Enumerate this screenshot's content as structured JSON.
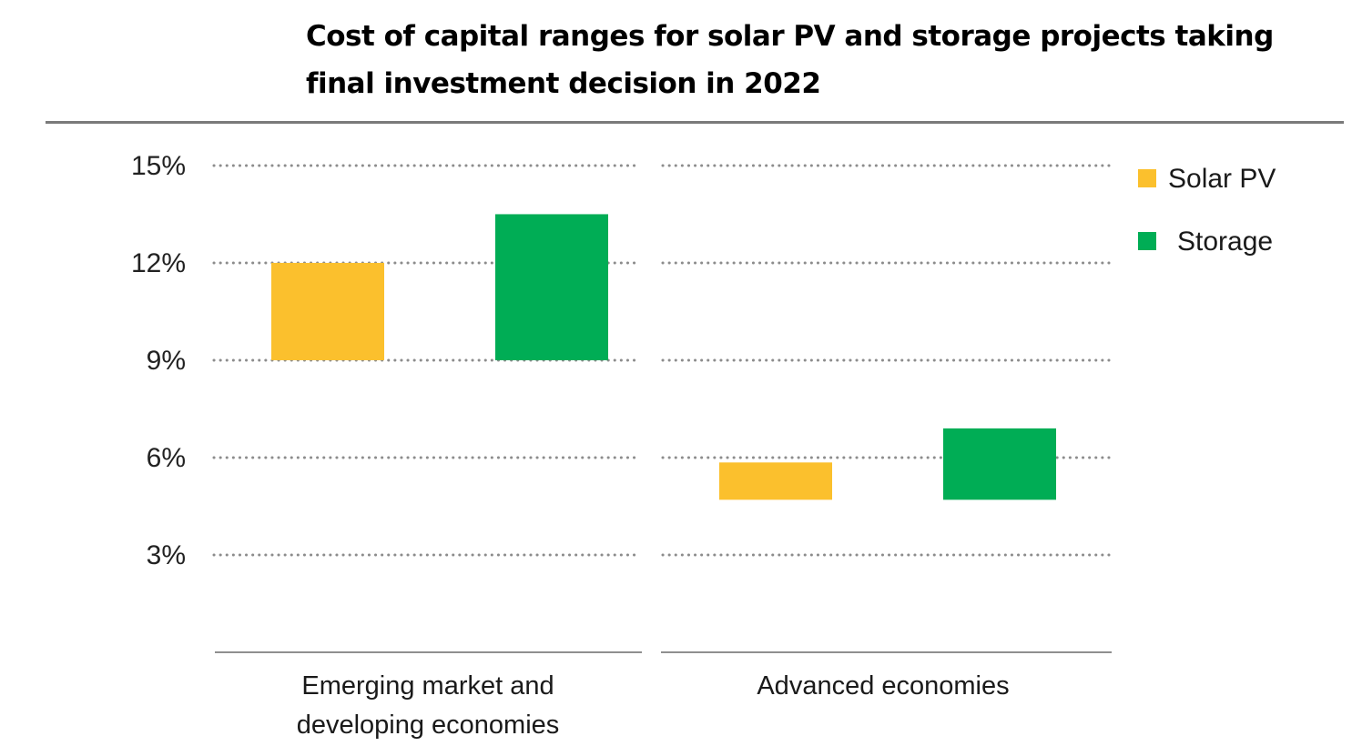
{
  "chart_data": {
    "type": "bar",
    "subtype": "floating-range",
    "title": "Cost of capital ranges for solar PV and storage projects taking final investment decision in 2022",
    "title_lines": [
      "Cost of capital ranges for solar PV and storage projects taking",
      "final investment decision in 2022"
    ],
    "xlabel": "",
    "ylabel": "",
    "ylim": [
      0,
      15
    ],
    "yticks": [
      3,
      6,
      9,
      12,
      15
    ],
    "ytick_labels": [
      "3%",
      "6%",
      "9%",
      "12%",
      "15%"
    ],
    "grid": true,
    "grid_style": "dotted",
    "legend_position": "right",
    "categories": [
      "Emerging market and developing economies",
      "Advanced economies"
    ],
    "category_label_lines": [
      [
        "Emerging market and",
        "developing economies"
      ],
      [
        "Advanced economies"
      ]
    ],
    "series": [
      {
        "name": "Solar PV",
        "color": "#FBC02D",
        "ranges": [
          [
            9,
            12
          ],
          [
            4.7,
            5.85
          ]
        ]
      },
      {
        "name": "Storage",
        "color": "#00AD55",
        "ranges": [
          [
            9,
            13.5
          ],
          [
            4.7,
            6.9
          ]
        ]
      }
    ],
    "units": "%"
  }
}
